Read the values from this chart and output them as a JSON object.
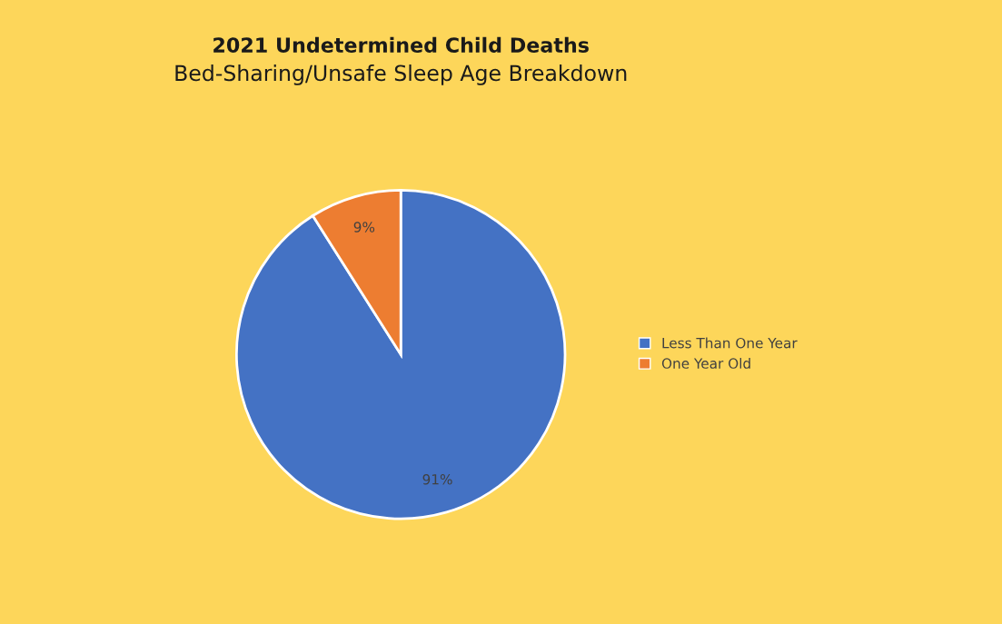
{
  "chart_data": {
    "type": "pie",
    "title": "2021 Undetermined Child Deaths",
    "subtitle": "Bed-Sharing/Unsafe Sleep Age Breakdown",
    "categories": [
      "Less Than One Year",
      "One Year Old"
    ],
    "values": [
      91,
      9
    ],
    "colors": [
      "#4472c4",
      "#ed7d31"
    ],
    "value_labels": [
      "91%",
      "9%"
    ],
    "legend": "right"
  }
}
